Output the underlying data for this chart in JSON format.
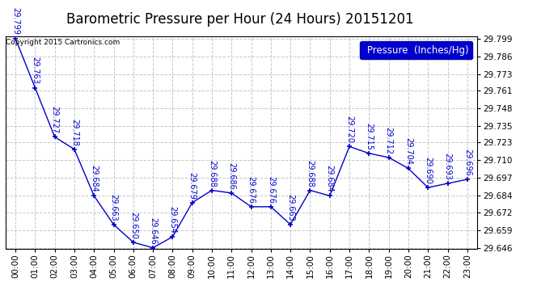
{
  "title": "Barometric Pressure per Hour (24 Hours) 20151201",
  "copyright": "Copyright 2015 Cartronics.com",
  "legend_label": "Pressure  (Inches/Hg)",
  "hours": [
    0,
    1,
    2,
    3,
    4,
    5,
    6,
    7,
    8,
    9,
    10,
    11,
    12,
    13,
    14,
    15,
    16,
    17,
    18,
    19,
    20,
    21,
    22,
    23
  ],
  "xtick_labels": [
    "00:00",
    "01:00",
    "02:00",
    "03:00",
    "04:00",
    "05:00",
    "06:00",
    "07:00",
    "08:00",
    "09:00",
    "10:00",
    "11:00",
    "12:00",
    "13:00",
    "14:00",
    "15:00",
    "16:00",
    "17:00",
    "18:00",
    "19:00",
    "20:00",
    "21:00",
    "22:00",
    "23:00"
  ],
  "values": [
    29.799,
    29.763,
    29.727,
    29.718,
    29.684,
    29.663,
    29.65,
    29.646,
    29.654,
    29.679,
    29.688,
    29.686,
    29.676,
    29.676,
    29.663,
    29.688,
    29.684,
    29.72,
    29.715,
    29.712,
    29.704,
    29.69,
    29.693,
    29.696
  ],
  "line_color": "#0000cc",
  "marker_color": "#000080",
  "label_color": "#0000cc",
  "grid_color": "#c8c8c8",
  "bg_color": "#ffffff",
  "ylim_min": 29.6455,
  "ylim_max": 29.8005,
  "ytick_values": [
    29.646,
    29.659,
    29.672,
    29.684,
    29.697,
    29.71,
    29.723,
    29.735,
    29.748,
    29.761,
    29.773,
    29.786,
    29.799
  ],
  "title_fontsize": 12,
  "label_fontsize": 7,
  "tick_fontsize": 7.5,
  "legend_fontsize": 8.5
}
